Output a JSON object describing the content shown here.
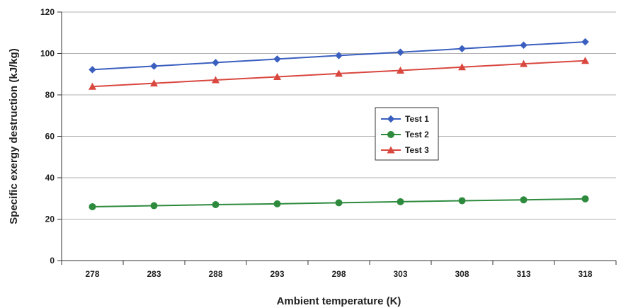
{
  "chart_data": {
    "type": "line",
    "title": "",
    "xlabel": "Ambient temperature (K)",
    "ylabel": "Specific exergy destruction (kJ/kg)",
    "categories": [
      "278",
      "283",
      "288",
      "293",
      "298",
      "303",
      "308",
      "313",
      "318"
    ],
    "ylim": [
      0,
      120
    ],
    "yticks": [
      "0",
      "20",
      "40",
      "60",
      "80",
      "100",
      "120"
    ],
    "grid": "horizontal",
    "legend_position": "center-right",
    "series": [
      {
        "name": "Test 1",
        "marker": "diamond",
        "color": "#3a5fbf",
        "values": [
          92.2,
          93.9,
          95.6,
          97.3,
          99.0,
          100.6,
          102.3,
          104.0,
          105.6
        ]
      },
      {
        "name": "Test 2",
        "marker": "circle",
        "color": "#2e8b3e",
        "values": [
          26.0,
          26.5,
          27.0,
          27.4,
          27.9,
          28.4,
          28.9,
          29.3,
          29.8
        ]
      },
      {
        "name": "Test 3",
        "marker": "triangle",
        "color": "#d9473f",
        "values": [
          84.0,
          85.6,
          87.2,
          88.7,
          90.3,
          91.8,
          93.4,
          95.0,
          96.5
        ]
      }
    ]
  }
}
